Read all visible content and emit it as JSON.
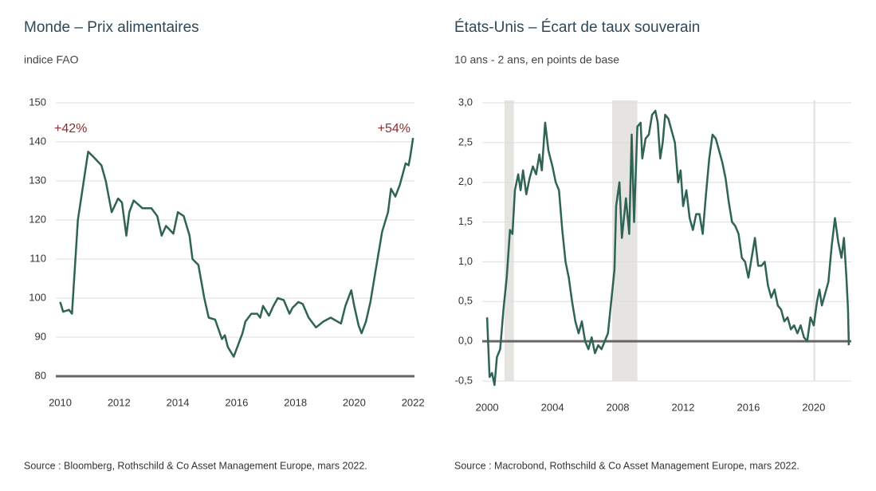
{
  "chart_data": [
    {
      "type": "line",
      "title": "Monde – Prix alimentaires",
      "subtitle": "indice FAO",
      "source": "Source : Bloomberg, Rothschild & Co Asset Management Europe, mars 2022.",
      "annotations": [
        "+42%",
        "+54%"
      ],
      "annotation_color": "#8b2e2e",
      "color": "#2e6355",
      "x": [
        2010.0,
        2010.1,
        2010.3,
        2010.4,
        2010.6,
        2010.95,
        2011.15,
        2011.4,
        2011.55,
        2011.75,
        2011.97,
        2012.1,
        2012.25,
        2012.35,
        2012.5,
        2012.8,
        2013.1,
        2013.3,
        2013.45,
        2013.6,
        2013.85,
        2014.0,
        2014.2,
        2014.4,
        2014.5,
        2014.7,
        2014.9,
        2015.05,
        2015.27,
        2015.5,
        2015.6,
        2015.7,
        2015.9,
        2016.05,
        2016.2,
        2016.3,
        2016.5,
        2016.7,
        2016.8,
        2016.9,
        2017.1,
        2017.25,
        2017.4,
        2017.6,
        2017.8,
        2017.9,
        2018.1,
        2018.25,
        2018.45,
        2018.7,
        2018.95,
        2019.2,
        2019.55,
        2019.7,
        2019.9,
        2020.0,
        2020.15,
        2020.25,
        2020.4,
        2020.55,
        2020.75,
        2020.95,
        2021.15,
        2021.25,
        2021.4,
        2021.55,
        2021.75,
        2021.85,
        2021.9,
        2022.0
      ],
      "values": [
        99,
        96.5,
        97,
        96,
        120,
        137.5,
        136,
        134,
        130,
        122,
        125.5,
        124.5,
        116,
        122,
        125,
        123,
        123,
        121,
        116,
        118.5,
        116.5,
        122,
        121,
        116,
        110,
        108.5,
        100,
        95,
        94.5,
        89.5,
        90.5,
        87.5,
        85,
        88,
        91,
        94,
        96,
        96,
        95,
        98,
        95.5,
        98,
        100,
        99.5,
        96,
        97.5,
        99,
        98.5,
        95,
        92.5,
        94,
        95,
        93.5,
        98,
        102,
        98,
        93,
        91,
        94,
        99,
        108,
        117,
        122,
        128,
        126,
        129,
        134.5,
        134,
        136,
        141
      ],
      "xlim": [
        2009.85,
        2022.05
      ],
      "xticks": [
        2010,
        2012,
        2014,
        2016,
        2018,
        2020,
        2022
      ],
      "ylim": [
        80,
        150
      ],
      "yticks": [
        80,
        90,
        100,
        110,
        120,
        130,
        140,
        150
      ],
      "grid": true
    },
    {
      "type": "line",
      "title": "États-Unis – Écart de taux souverain",
      "subtitle": "10 ans - 2 ans, en points de base",
      "source": "Source : Macrobond, Rothschild & Co Asset Management Europe, mars 2022.",
      "color": "#2e6355",
      "recession_color": "#e6e4e0",
      "recessions": [
        [
          2001.06,
          2001.64
        ],
        [
          2007.66,
          2009.2
        ],
        [
          2019.98,
          2020.1
        ]
      ],
      "x": [
        2000.0,
        2000.15,
        2000.3,
        2000.45,
        2000.6,
        2000.8,
        2001.0,
        2001.2,
        2001.4,
        2001.55,
        2001.7,
        2001.9,
        2002.05,
        2002.2,
        2002.4,
        2002.6,
        2002.8,
        2003.0,
        2003.2,
        2003.35,
        2003.55,
        2003.75,
        2004.0,
        2004.2,
        2004.4,
        2004.6,
        2004.8,
        2005.0,
        2005.2,
        2005.4,
        2005.6,
        2005.8,
        2006.0,
        2006.2,
        2006.4,
        2006.6,
        2006.8,
        2007.0,
        2007.2,
        2007.4,
        2007.6,
        2007.8,
        2007.9,
        2008.1,
        2008.25,
        2008.5,
        2008.7,
        2008.85,
        2009.0,
        2009.2,
        2009.4,
        2009.5,
        2009.7,
        2009.9,
        2010.1,
        2010.3,
        2010.45,
        2010.6,
        2010.75,
        2010.9,
        2011.1,
        2011.3,
        2011.5,
        2011.7,
        2011.85,
        2012.0,
        2012.2,
        2012.4,
        2012.6,
        2012.8,
        2013.0,
        2013.2,
        2013.4,
        2013.6,
        2013.8,
        2014.0,
        2014.2,
        2014.4,
        2014.6,
        2014.8,
        2015.0,
        2015.2,
        2015.4,
        2015.6,
        2015.8,
        2016.0,
        2016.2,
        2016.4,
        2016.6,
        2016.8,
        2017.0,
        2017.2,
        2017.4,
        2017.6,
        2017.8,
        2018.0,
        2018.2,
        2018.4,
        2018.6,
        2018.8,
        2019.0,
        2019.2,
        2019.4,
        2019.6,
        2019.8,
        2020.0,
        2020.2,
        2020.35,
        2020.5,
        2020.7,
        2020.9,
        2021.1,
        2021.3,
        2021.5,
        2021.7,
        2021.85,
        2022.0,
        2022.1,
        2022.15
      ],
      "values": [
        0.3,
        -0.45,
        -0.4,
        -0.55,
        -0.2,
        -0.1,
        0.4,
        0.8,
        1.4,
        1.35,
        1.9,
        2.1,
        1.9,
        2.15,
        1.85,
        2.05,
        2.2,
        2.1,
        2.35,
        2.15,
        2.75,
        2.4,
        2.2,
        2.0,
        1.9,
        1.4,
        1.0,
        0.8,
        0.5,
        0.25,
        0.1,
        0.25,
        0.0,
        -0.1,
        0.05,
        -0.15,
        -0.05,
        -0.1,
        0.0,
        0.1,
        0.5,
        0.9,
        1.7,
        2.0,
        1.3,
        1.8,
        1.35,
        2.6,
        1.5,
        2.7,
        2.75,
        2.3,
        2.55,
        2.6,
        2.85,
        2.9,
        2.75,
        2.3,
        2.5,
        2.85,
        2.8,
        2.65,
        2.5,
        2.0,
        2.15,
        1.7,
        1.9,
        1.55,
        1.4,
        1.6,
        1.6,
        1.35,
        1.85,
        2.3,
        2.6,
        2.55,
        2.4,
        2.25,
        2.05,
        1.75,
        1.5,
        1.45,
        1.35,
        1.05,
        1.0,
        0.8,
        1.05,
        1.3,
        0.95,
        0.95,
        1.0,
        0.7,
        0.55,
        0.65,
        0.45,
        0.4,
        0.25,
        0.3,
        0.15,
        0.2,
        0.1,
        0.2,
        0.05,
        0.0,
        0.3,
        0.2,
        0.5,
        0.65,
        0.45,
        0.6,
        0.75,
        1.2,
        1.55,
        1.25,
        1.05,
        1.3,
        0.8,
        0.4,
        -0.05
      ],
      "xlim": [
        1999.7,
        2022.3
      ],
      "xticks": [
        2000,
        2004,
        2008,
        2012,
        2016,
        2020
      ],
      "ylim": [
        -0.5,
        3.0
      ],
      "yticks": [
        {
          "value": -0.5,
          "label": "-0,5"
        },
        {
          "value": 0,
          "label": "0,0"
        },
        {
          "value": 0.5,
          "label": "0,5"
        },
        {
          "value": 1,
          "label": "1,0"
        },
        {
          "value": 1.5,
          "label": "1,5"
        },
        {
          "value": 2,
          "label": "2,0"
        },
        {
          "value": 2.5,
          "label": "2,5"
        },
        {
          "value": 3,
          "label": "3,0"
        }
      ],
      "grid": true
    }
  ]
}
